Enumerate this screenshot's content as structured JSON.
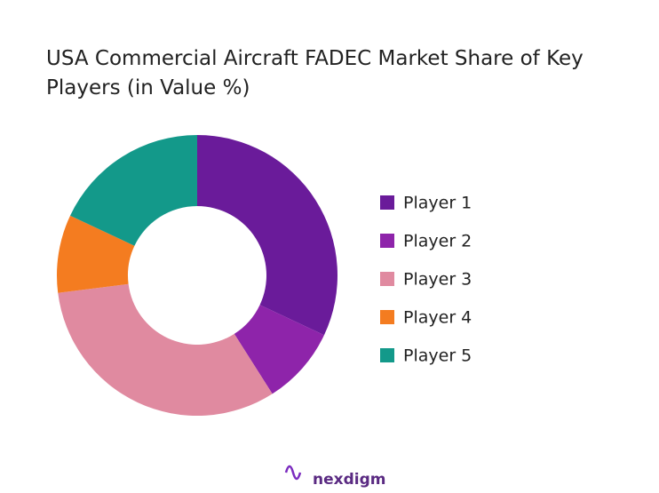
{
  "chart_data": {
    "type": "donut",
    "title": "USA Commercial Aircraft FADEC Market Share of Key Players (in Value %)",
    "categories": [
      "Player 1",
      "Player 2",
      "Player 3",
      "Player 4",
      "Player 5"
    ],
    "values": [
      32,
      9,
      32,
      9,
      18
    ],
    "colors": [
      "#6a1b9a",
      "#8e24aa",
      "#e08aa0",
      "#f47c20",
      "#13998a"
    ],
    "legend": "right"
  },
  "brand": "nexdigm"
}
